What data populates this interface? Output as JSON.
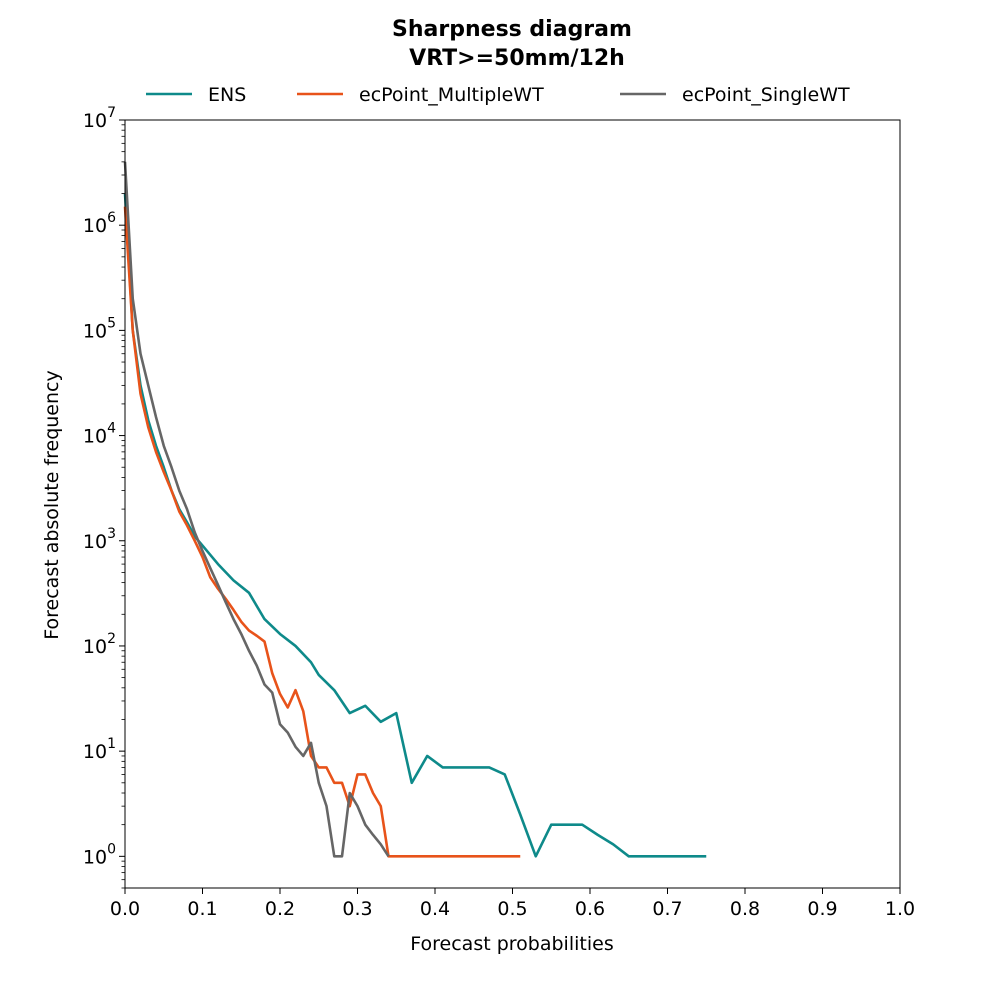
{
  "chart_data": {
    "type": "line",
    "title": "Sharpness diagram",
    "subtitle": "VRT>=50mm/12h",
    "xlabel": "Forecast probabilities",
    "ylabel": "Forecast absolute frequency",
    "xlim": [
      0.0,
      1.0
    ],
    "ylim": [
      0.5,
      10000000
    ],
    "yscale": "log",
    "x_ticks": [
      "0.0",
      "0.1",
      "0.2",
      "0.3",
      "0.4",
      "0.5",
      "0.6",
      "0.7",
      "0.8",
      "0.9",
      "1.0"
    ],
    "y_ticks": [
      {
        "base": "10",
        "exp": "0",
        "value": 1
      },
      {
        "base": "10",
        "exp": "1",
        "value": 10
      },
      {
        "base": "10",
        "exp": "2",
        "value": 100
      },
      {
        "base": "10",
        "exp": "3",
        "value": 1000
      },
      {
        "base": "10",
        "exp": "4",
        "value": 10000
      },
      {
        "base": "10",
        "exp": "5",
        "value": 100000
      },
      {
        "base": "10",
        "exp": "6",
        "value": 1000000
      },
      {
        "base": "10",
        "exp": "7",
        "value": 10000000
      }
    ],
    "grid": false,
    "legend_position": "top",
    "series": [
      {
        "name": "ENS",
        "color": "#0e8a8a",
        "x": [
          0.0,
          0.01,
          0.02,
          0.03,
          0.04,
          0.05,
          0.06,
          0.07,
          0.08,
          0.09,
          0.1,
          0.12,
          0.14,
          0.16,
          0.18,
          0.2,
          0.22,
          0.24,
          0.25,
          0.27,
          0.29,
          0.31,
          0.33,
          0.35,
          0.37,
          0.39,
          0.41,
          0.43,
          0.45,
          0.47,
          0.49,
          0.51,
          0.53,
          0.55,
          0.57,
          0.59,
          0.61,
          0.63,
          0.65,
          0.67,
          0.69,
          0.71,
          0.73,
          0.75
        ],
        "y": [
          2000000,
          100000,
          30000,
          14000,
          8000,
          5000,
          3000,
          2000,
          1500,
          1100,
          900,
          600,
          420,
          320,
          180,
          130,
          100,
          70,
          53,
          38,
          23,
          27,
          19,
          23,
          5,
          9,
          7,
          7,
          7,
          7,
          6,
          2.5,
          1,
          2,
          2,
          2,
          1.6,
          1.3,
          1,
          1,
          1,
          1,
          1,
          1
        ]
      },
      {
        "name": "ecPoint_MultipleWT",
        "color": "#e8531a",
        "x": [
          0.0,
          0.01,
          0.02,
          0.03,
          0.04,
          0.05,
          0.06,
          0.07,
          0.08,
          0.09,
          0.1,
          0.11,
          0.12,
          0.13,
          0.14,
          0.15,
          0.16,
          0.17,
          0.18,
          0.19,
          0.2,
          0.21,
          0.22,
          0.23,
          0.24,
          0.25,
          0.26,
          0.27,
          0.28,
          0.29,
          0.3,
          0.31,
          0.32,
          0.33,
          0.34,
          0.35,
          0.37,
          0.39,
          0.41,
          0.43,
          0.45,
          0.47,
          0.49,
          0.51
        ],
        "y": [
          1500000,
          100000,
          25000,
          12000,
          7000,
          4500,
          3000,
          1900,
          1400,
          1000,
          700,
          450,
          350,
          280,
          220,
          170,
          140,
          125,
          110,
          55,
          35,
          26,
          38,
          24,
          9,
          7,
          7,
          5,
          5,
          3,
          6,
          6,
          4,
          3,
          1,
          1,
          1,
          1,
          1,
          1,
          1,
          1,
          1,
          1
        ]
      },
      {
        "name": "ecPoint_SingleWT",
        "color": "#666666",
        "x": [
          0.0,
          0.01,
          0.02,
          0.03,
          0.04,
          0.05,
          0.06,
          0.07,
          0.08,
          0.09,
          0.1,
          0.11,
          0.12,
          0.13,
          0.14,
          0.15,
          0.16,
          0.17,
          0.18,
          0.19,
          0.2,
          0.21,
          0.22,
          0.23,
          0.24,
          0.25,
          0.26,
          0.27,
          0.28,
          0.29,
          0.3,
          0.31,
          0.32,
          0.33,
          0.34
        ],
        "y": [
          4000000,
          200000,
          60000,
          30000,
          15000,
          8000,
          5000,
          3000,
          2000,
          1200,
          800,
          550,
          380,
          260,
          180,
          130,
          90,
          65,
          43,
          36,
          18,
          15,
          11,
          9,
          12,
          5,
          3,
          1,
          1,
          4,
          3,
          2,
          1.6,
          1.3,
          1
        ]
      }
    ]
  }
}
